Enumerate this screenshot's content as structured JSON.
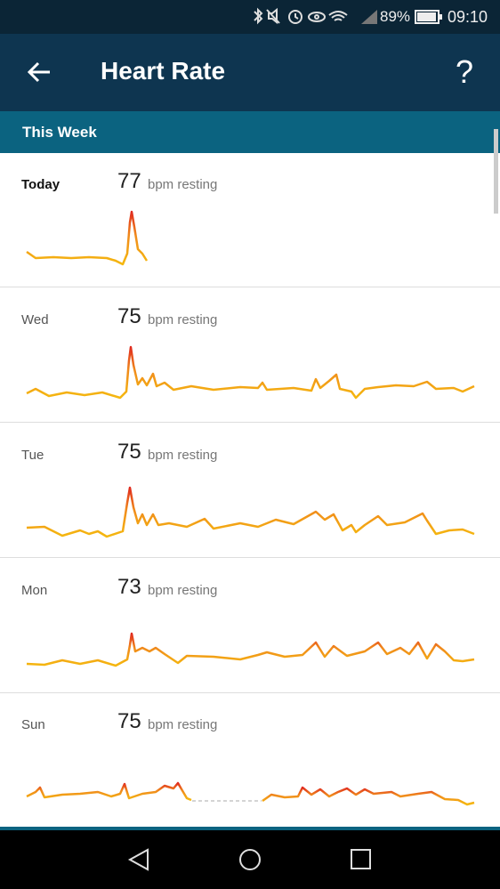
{
  "status_bar": {
    "battery": "89%",
    "time": "09:10"
  },
  "header": {
    "title": "Heart Rate",
    "help": "?"
  },
  "section": {
    "title": "This Week"
  },
  "days": [
    {
      "label": "Today",
      "value": 77,
      "unit": "bpm resting"
    },
    {
      "label": "Wed",
      "value": 75,
      "unit": "bpm resting"
    },
    {
      "label": "Tue",
      "value": 75,
      "unit": "bpm resting"
    },
    {
      "label": "Mon",
      "value": 73,
      "unit": "bpm resting"
    },
    {
      "label": "Sun",
      "value": 75,
      "unit": "bpm resting"
    }
  ]
}
